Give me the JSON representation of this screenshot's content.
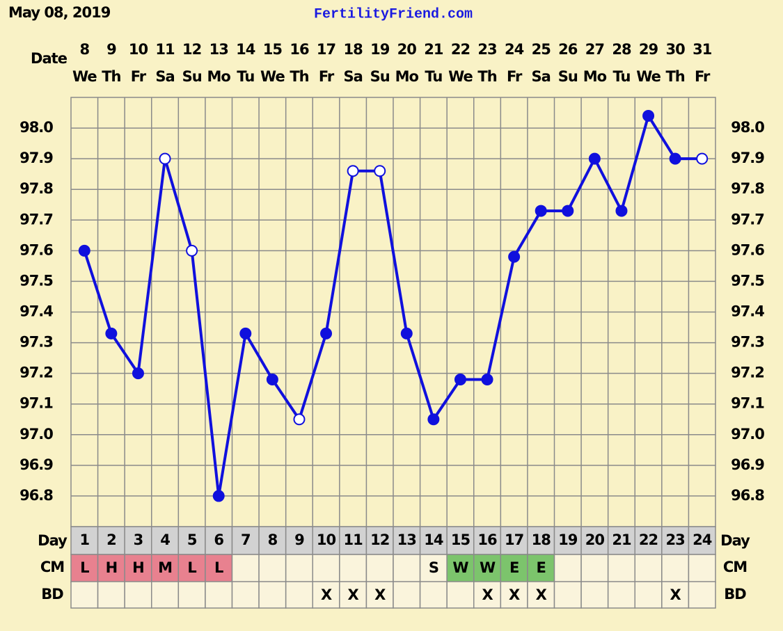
{
  "header": {
    "date": "May 08, 2019",
    "site": "FertilityFriend.com"
  },
  "chart_data": {
    "type": "line",
    "x_label": "Date",
    "categories": [
      "8",
      "9",
      "10",
      "11",
      "12",
      "13",
      "14",
      "15",
      "16",
      "17",
      "18",
      "19",
      "20",
      "21",
      "22",
      "23",
      "24",
      "25",
      "26",
      "27",
      "28",
      "29",
      "30",
      "31"
    ],
    "weekdays": [
      "We",
      "Th",
      "Fr",
      "Sa",
      "Su",
      "Mo",
      "Tu",
      "We",
      "Th",
      "Fr",
      "Sa",
      "Su",
      "Mo",
      "Tu",
      "We",
      "Th",
      "Fr",
      "Sa",
      "Su",
      "Mo",
      "Tu",
      "We",
      "Th",
      "Fr"
    ],
    "values": [
      97.6,
      97.33,
      97.2,
      97.9,
      97.6,
      96.8,
      97.33,
      97.18,
      97.05,
      97.33,
      97.86,
      97.86,
      97.33,
      97.05,
      97.18,
      97.18,
      97.58,
      97.73,
      97.73,
      97.9,
      97.73,
      98.04,
      97.9,
      97.9
    ],
    "hollow": [
      false,
      false,
      false,
      true,
      true,
      false,
      false,
      false,
      true,
      false,
      true,
      true,
      false,
      false,
      false,
      false,
      false,
      false,
      false,
      false,
      false,
      false,
      false,
      true
    ],
    "color": "#1010dd",
    "ylim": [
      96.7,
      98.1
    ],
    "yticks": [
      96.8,
      96.9,
      {
        "value": 97.0,
        "label": "97.0"
      },
      97.1,
      97.2,
      97.3,
      97.4,
      97.5,
      97.6,
      97.7,
      97.8,
      97.9,
      {
        "value": 98.0,
        "label": "98.0"
      }
    ],
    "grid": true
  },
  "rows": {
    "day_label": "Day",
    "days": [
      "1",
      "2",
      "3",
      "4",
      "5",
      "6",
      "7",
      "8",
      "9",
      "10",
      "11",
      "12",
      "13",
      "14",
      "15",
      "16",
      "17",
      "18",
      "19",
      "20",
      "21",
      "22",
      "23",
      "24"
    ],
    "cm_label": "CM",
    "cm": [
      "L",
      "H",
      "H",
      "M",
      "L",
      "L",
      null,
      null,
      null,
      null,
      null,
      null,
      null,
      "S",
      "W",
      "W",
      "E",
      "E",
      null,
      null,
      null,
      null,
      null,
      null
    ],
    "cm_colors": {
      "L": "#e8818f",
      "H": "#e8818f",
      "M": "#e8818f",
      "W": "#7cc46c",
      "E": "#7cc46c"
    },
    "bd_label": "BD",
    "bd": [
      null,
      null,
      null,
      null,
      null,
      null,
      null,
      null,
      null,
      "X",
      "X",
      "X",
      null,
      null,
      null,
      "X",
      "X",
      "X",
      null,
      null,
      null,
      null,
      "X",
      null
    ]
  }
}
